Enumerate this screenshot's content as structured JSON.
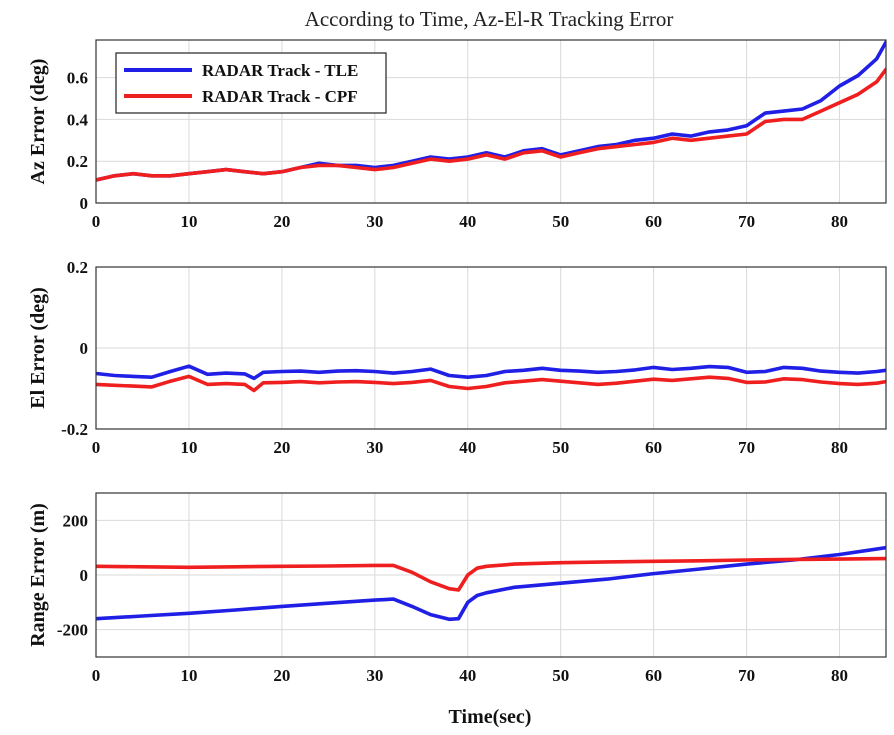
{
  "figure": {
    "title": "According to Time, Az-El-R Tracking Error",
    "xlabel": "Time(sec)"
  },
  "legend": {
    "placement": "top-left",
    "entries": [
      {
        "label": "RADAR Track - TLE",
        "color": "#1f1fe6"
      },
      {
        "label": "RADAR Track - CPF",
        "color": "#f01f1f"
      }
    ]
  },
  "chart_data": [
    {
      "type": "line",
      "ylabel": "Az Error (deg)",
      "xlim": [
        0,
        85
      ],
      "ylim": [
        0,
        0.78
      ],
      "xticks": [
        0,
        10,
        20,
        30,
        40,
        50,
        60,
        70,
        80
      ],
      "yticks": [
        0,
        0.2,
        0.4,
        0.6
      ],
      "ytick_labels": [
        "0",
        "0.2",
        "0.4",
        "0.6"
      ],
      "grid": true,
      "series": [
        {
          "name": "RADAR Track - TLE",
          "color": "#1f1fe6",
          "x": [
            0,
            2,
            4,
            6,
            8,
            10,
            12,
            14,
            16,
            18,
            20,
            22,
            24,
            26,
            28,
            30,
            32,
            34,
            36,
            38,
            40,
            42,
            44,
            46,
            48,
            50,
            52,
            54,
            56,
            58,
            60,
            62,
            64,
            66,
            68,
            70,
            72,
            74,
            76,
            78,
            80,
            82,
            84,
            85
          ],
          "y": [
            0.11,
            0.13,
            0.14,
            0.13,
            0.13,
            0.14,
            0.15,
            0.16,
            0.15,
            0.14,
            0.15,
            0.17,
            0.19,
            0.18,
            0.18,
            0.17,
            0.18,
            0.2,
            0.22,
            0.21,
            0.22,
            0.24,
            0.22,
            0.25,
            0.26,
            0.23,
            0.25,
            0.27,
            0.28,
            0.3,
            0.31,
            0.33,
            0.32,
            0.34,
            0.35,
            0.37,
            0.43,
            0.44,
            0.45,
            0.49,
            0.56,
            0.61,
            0.69,
            0.77
          ]
        },
        {
          "name": "RADAR Track - CPF",
          "color": "#f01f1f",
          "x": [
            0,
            2,
            4,
            6,
            8,
            10,
            12,
            14,
            16,
            18,
            20,
            22,
            24,
            26,
            28,
            30,
            32,
            34,
            36,
            38,
            40,
            42,
            44,
            46,
            48,
            50,
            52,
            54,
            56,
            58,
            60,
            62,
            64,
            66,
            68,
            70,
            72,
            74,
            76,
            78,
            80,
            82,
            84,
            85
          ],
          "y": [
            0.11,
            0.13,
            0.14,
            0.13,
            0.13,
            0.14,
            0.15,
            0.16,
            0.15,
            0.14,
            0.15,
            0.17,
            0.18,
            0.18,
            0.17,
            0.16,
            0.17,
            0.19,
            0.21,
            0.2,
            0.21,
            0.23,
            0.21,
            0.24,
            0.25,
            0.22,
            0.24,
            0.26,
            0.27,
            0.28,
            0.29,
            0.31,
            0.3,
            0.31,
            0.32,
            0.33,
            0.39,
            0.4,
            0.4,
            0.44,
            0.48,
            0.52,
            0.58,
            0.64
          ]
        }
      ]
    },
    {
      "type": "line",
      "ylabel": "El Error (deg)",
      "xlim": [
        0,
        85
      ],
      "ylim": [
        -0.2,
        0.2
      ],
      "xticks": [
        0,
        10,
        20,
        30,
        40,
        50,
        60,
        70,
        80
      ],
      "yticks": [
        -0.2,
        0,
        0.2
      ],
      "ytick_labels": [
        "-0.2",
        "0",
        "0.2"
      ],
      "grid": true,
      "series": [
        {
          "name": "RADAR Track - TLE",
          "color": "#1f1fe6",
          "x": [
            0,
            2,
            4,
            6,
            8,
            10,
            12,
            14,
            16,
            17,
            18,
            20,
            22,
            24,
            26,
            28,
            30,
            32,
            34,
            36,
            38,
            40,
            42,
            44,
            46,
            48,
            50,
            52,
            54,
            56,
            58,
            60,
            62,
            64,
            66,
            68,
            70,
            72,
            74,
            76,
            78,
            80,
            82,
            84,
            85
          ],
          "y": [
            -0.063,
            -0.068,
            -0.07,
            -0.072,
            -0.058,
            -0.045,
            -0.065,
            -0.062,
            -0.064,
            -0.075,
            -0.06,
            -0.058,
            -0.057,
            -0.06,
            -0.057,
            -0.056,
            -0.058,
            -0.062,
            -0.058,
            -0.052,
            -0.068,
            -0.072,
            -0.068,
            -0.058,
            -0.055,
            -0.05,
            -0.055,
            -0.057,
            -0.06,
            -0.058,
            -0.054,
            -0.048,
            -0.053,
            -0.05,
            -0.046,
            -0.048,
            -0.06,
            -0.058,
            -0.048,
            -0.05,
            -0.057,
            -0.06,
            -0.062,
            -0.058,
            -0.055
          ]
        },
        {
          "name": "RADAR Track - CPF",
          "color": "#f01f1f",
          "x": [
            0,
            2,
            4,
            6,
            8,
            10,
            12,
            14,
            16,
            17,
            18,
            20,
            22,
            24,
            26,
            28,
            30,
            32,
            34,
            36,
            38,
            40,
            42,
            44,
            46,
            48,
            50,
            52,
            54,
            56,
            58,
            60,
            62,
            64,
            66,
            68,
            70,
            72,
            74,
            76,
            78,
            80,
            82,
            84,
            85
          ],
          "y": [
            -0.09,
            -0.092,
            -0.094,
            -0.096,
            -0.082,
            -0.07,
            -0.09,
            -0.088,
            -0.09,
            -0.105,
            -0.086,
            -0.085,
            -0.083,
            -0.086,
            -0.084,
            -0.083,
            -0.085,
            -0.088,
            -0.085,
            -0.08,
            -0.095,
            -0.1,
            -0.095,
            -0.086,
            -0.082,
            -0.078,
            -0.082,
            -0.086,
            -0.09,
            -0.087,
            -0.082,
            -0.077,
            -0.08,
            -0.076,
            -0.072,
            -0.075,
            -0.085,
            -0.084,
            -0.076,
            -0.078,
            -0.084,
            -0.088,
            -0.09,
            -0.087,
            -0.083
          ]
        }
      ]
    },
    {
      "type": "line",
      "ylabel": "Range Error (m)",
      "xlim": [
        0,
        85
      ],
      "ylim": [
        -300,
        300
      ],
      "xticks": [
        0,
        10,
        20,
        30,
        40,
        50,
        60,
        70,
        80
      ],
      "yticks": [
        -200,
        0,
        200
      ],
      "ytick_labels": [
        "-200",
        "0",
        "200"
      ],
      "grid": true,
      "series": [
        {
          "name": "RADAR Track - TLE",
          "color": "#1f1fe6",
          "x": [
            0,
            5,
            10,
            15,
            20,
            25,
            30,
            32,
            34,
            36,
            38,
            39,
            40,
            41,
            42,
            45,
            50,
            55,
            60,
            65,
            70,
            75,
            80,
            85
          ],
          "y": [
            -160,
            -150,
            -140,
            -128,
            -115,
            -103,
            -92,
            -88,
            -115,
            -145,
            -162,
            -160,
            -100,
            -75,
            -65,
            -45,
            -30,
            -15,
            5,
            22,
            40,
            55,
            75,
            100
          ],
          "markers": false
        },
        {
          "name": "RADAR Track - CPF",
          "color": "#f01f1f",
          "x": [
            0,
            5,
            10,
            15,
            20,
            25,
            30,
            32,
            34,
            36,
            38,
            39,
            40,
            41,
            42,
            45,
            50,
            55,
            60,
            65,
            70,
            75,
            80,
            85
          ],
          "y": [
            32,
            30,
            28,
            30,
            32,
            33,
            35,
            35,
            10,
            -25,
            -50,
            -55,
            0,
            25,
            32,
            40,
            45,
            48,
            50,
            52,
            55,
            57,
            58,
            60
          ]
        }
      ]
    }
  ]
}
